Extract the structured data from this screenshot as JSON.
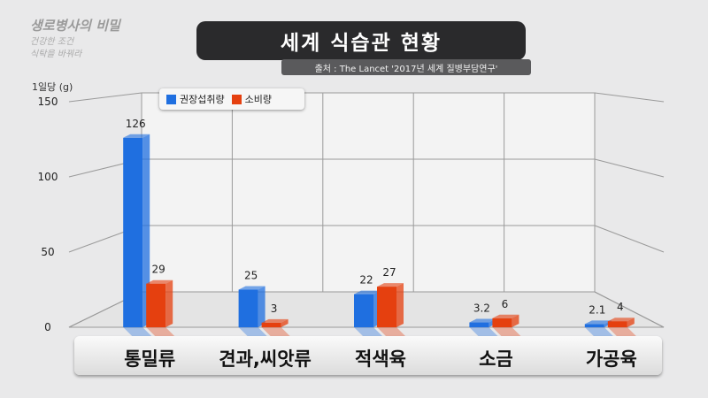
{
  "corner_title": {
    "line1": "생로병사의 비밀",
    "line2": "건강한 조건",
    "line3": "식탁을 바꿔라"
  },
  "chart_data": {
    "type": "bar",
    "title": "세계 식습관 현황",
    "subtitle": "출처 : The Lancet '2017년 세계 질병부담연구'",
    "ylabel": "1일당 (g)",
    "ylim": [
      0,
      150
    ],
    "yticks": [
      0,
      50,
      100,
      150
    ],
    "categories": [
      "통밀류",
      "견과,씨앗류",
      "적색육",
      "소금",
      "가공육"
    ],
    "series": [
      {
        "name": "권장섭취량",
        "color": "#1f6fe0",
        "values": [
          126,
          25,
          22,
          3.2,
          2.1
        ],
        "labels": [
          "126",
          "25",
          "22",
          "3.2",
          "2.1"
        ]
      },
      {
        "name": "소비량",
        "color": "#e5400f",
        "values": [
          29,
          3,
          27,
          6,
          4
        ],
        "labels": [
          "29",
          "3",
          "27",
          "6",
          "4"
        ]
      }
    ],
    "legend_position": "top-left",
    "grid": true
  }
}
